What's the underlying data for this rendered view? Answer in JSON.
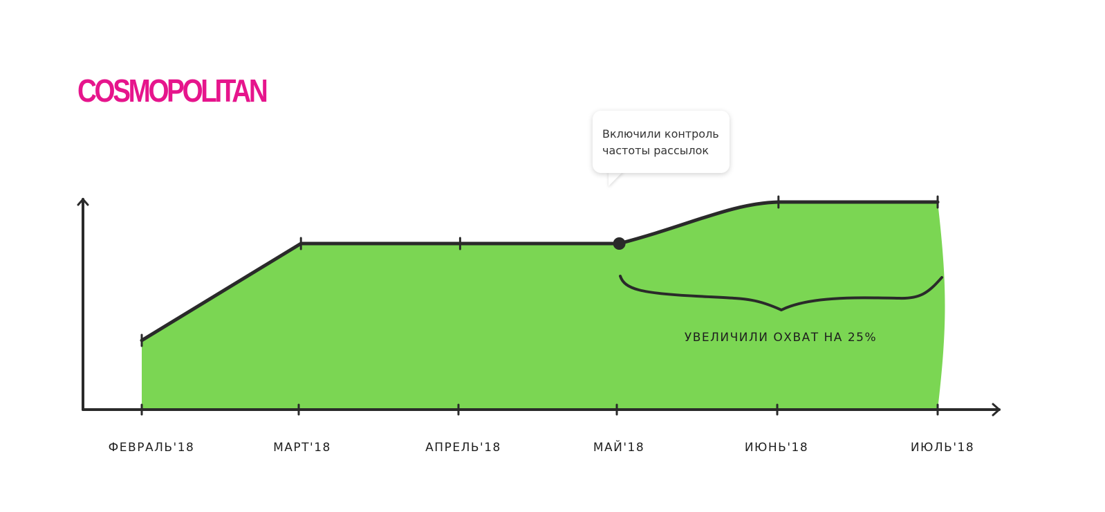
{
  "brand": {
    "logo_text": "COSMOPOLITAN",
    "logo_color": "#e6158c"
  },
  "callout": {
    "line1": "Включили контроль",
    "line2": "частоты рассылок"
  },
  "chart_data": {
    "type": "area",
    "title": "",
    "xlabel": "",
    "ylabel": "",
    "categories": [
      "ФЕВРАЛЬ'18",
      "МАРТ'18",
      "АПРЕЛЬ'18",
      "МАЙ'18",
      "ИЮНЬ'18",
      "ИЮЛЬ'18"
    ],
    "values": [
      100,
      240,
      240,
      240,
      300,
      300
    ],
    "y_ticks_shown": false,
    "grid": false,
    "legend": "none",
    "fill_color": "#7bd653",
    "line_color": "#2a2a2a",
    "highlight_point": "МАЙ'18",
    "annotation": {
      "text": "УВЕЛИЧИЛИ ОХВАТ НА 25%",
      "from": "МАЙ'18",
      "to": "ИЮЛЬ'18"
    }
  }
}
